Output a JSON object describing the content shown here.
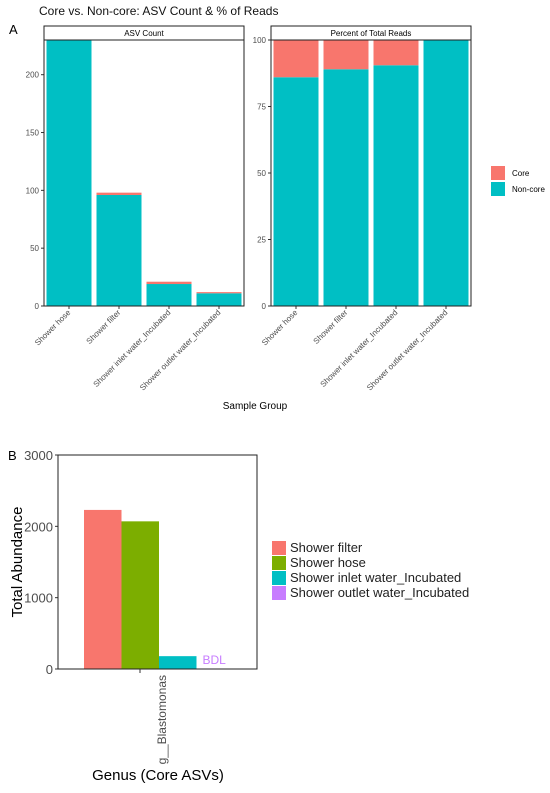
{
  "colors": {
    "core": "#f8766d",
    "noncore": "#00bfc4",
    "shower_filter": "#f8766d",
    "shower_hose": "#7cae00",
    "shower_inlet": "#00bfc4",
    "shower_outlet": "#c77cff",
    "bdl_text": "#c77cff"
  },
  "panelA": {
    "letter": "A",
    "title": "Core vs. Non-core: ASV Count & % of Reads",
    "xlabel": "Sample Group",
    "legend": [
      "Core",
      "Non-core"
    ]
  },
  "panelB": {
    "letter": "B",
    "ylabel": "Total Abundance",
    "xlabel": "Genus (Core ASVs)",
    "bdl_label": "BDL"
  },
  "chart_data": [
    {
      "type": "bar",
      "stacked": true,
      "title": "ASV Count",
      "categories": [
        "Shower hose",
        "Shower filter",
        "Shower inlet water_Incubated",
        "Shower outlet water_Incubated"
      ],
      "series": [
        {
          "name": "Non-core",
          "values": [
            230,
            96,
            19,
            11
          ]
        },
        {
          "name": "Core",
          "values": [
            0,
            2,
            2,
            1
          ]
        }
      ],
      "ylim": [
        0,
        230
      ],
      "yticks": [
        0,
        50,
        100,
        150,
        200
      ],
      "legend_position": "right"
    },
    {
      "type": "bar",
      "stacked": true,
      "title": "Percent of Total Reads",
      "categories": [
        "Shower hose",
        "Shower filter",
        "Shower inlet water_Incubated",
        "Shower outlet water_Incubated"
      ],
      "series": [
        {
          "name": "Non-core",
          "values": [
            86,
            89,
            90.5,
            100
          ]
        },
        {
          "name": "Core",
          "values": [
            14,
            11,
            9.5,
            0
          ]
        }
      ],
      "ylim": [
        0,
        100
      ],
      "yticks": [
        0,
        25,
        50,
        75,
        100
      ],
      "legend_position": "right"
    },
    {
      "type": "bar",
      "grouped": true,
      "categories": [
        "g__Blastomonas"
      ],
      "series": [
        {
          "name": "Shower filter",
          "values": [
            2230
          ]
        },
        {
          "name": "Shower hose",
          "values": [
            2070
          ]
        },
        {
          "name": "Shower inlet water_Incubated",
          "values": [
            180
          ]
        },
        {
          "name": "Shower outlet water_Incubated",
          "values": [
            null
          ]
        }
      ],
      "ylim": [
        0,
        3000
      ],
      "yticks": [
        0,
        1000,
        2000,
        3000
      ],
      "legend_position": "right"
    }
  ]
}
